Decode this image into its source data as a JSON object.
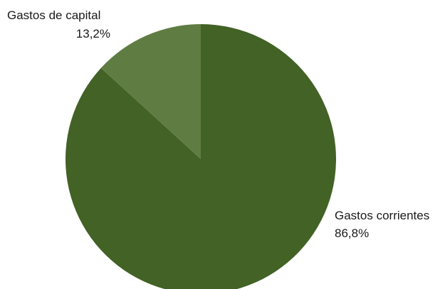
{
  "chart_data": {
    "type": "pie",
    "slices": [
      {
        "label": "Gastos corrientes",
        "value": 86.8,
        "value_text": "86,8%",
        "color": "#426226"
      },
      {
        "label": "Gastos de capital",
        "value": 13.2,
        "value_text": "13,2%",
        "color": "#5f7d42"
      }
    ],
    "start": "12 o'clock",
    "direction": "clockwise",
    "legend": "none (direct labels)"
  }
}
